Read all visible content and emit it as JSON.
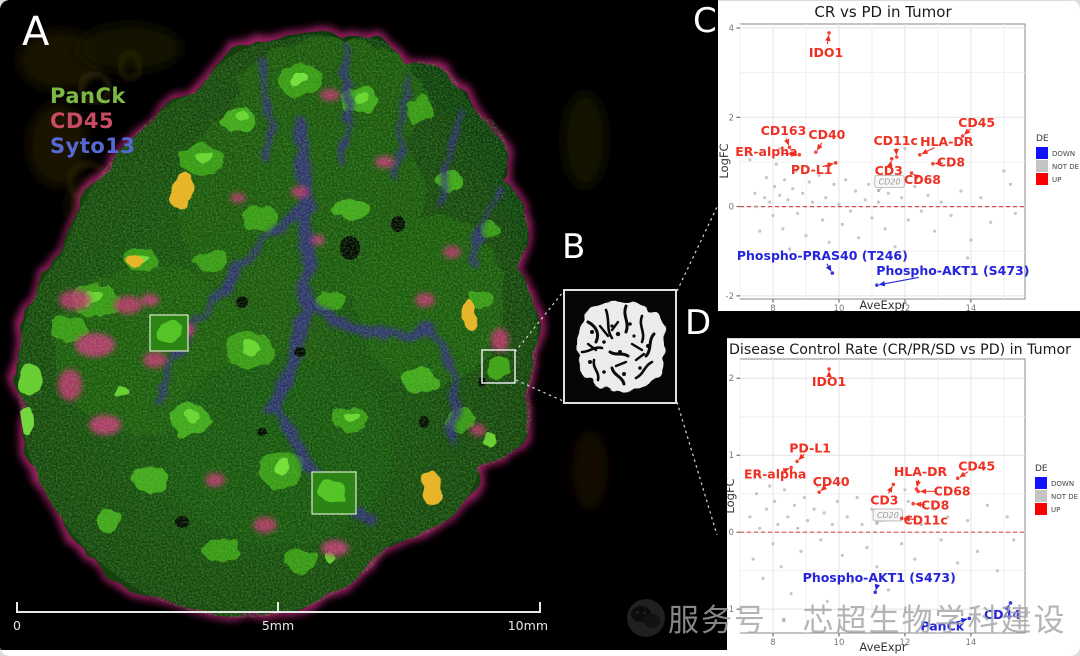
{
  "panel_a": {
    "letter": "A",
    "markers": [
      {
        "name": "PanCk",
        "color": "#7cb944"
      },
      {
        "name": "CD45",
        "color": "#c84a63"
      },
      {
        "name": "Syto13",
        "color": "#5668d2"
      }
    ],
    "scalebar": {
      "start": "0",
      "mid": "5mm",
      "end": "10mm"
    }
  },
  "panel_b": {
    "letter": "B"
  },
  "panel_c": {
    "letter": "C"
  },
  "panel_d": {
    "letter": "D"
  },
  "watermark": {
    "icon": "wechat-icon",
    "text": "服务号 · 芯超生物学科建设"
  },
  "de_colors": {
    "UP": "#ef3023",
    "DOWN": "#2424dd",
    "NOT_DE": "#9e9e9e"
  },
  "legend_swatch_colors": {
    "UP": "#fb0000",
    "DOWN": "#1111ff",
    "NOT_DE": "#c4c4c4"
  },
  "chart_data": [
    {
      "id": "cr_vs_pd",
      "type": "scatter",
      "title": "CR vs PD in Tumor",
      "title_align": "center",
      "xlabel": "AveExpr",
      "ylabel": "LogFC",
      "xlim": [
        7.0,
        15.64
      ],
      "ylim": [
        -2.07,
        4.09
      ],
      "xticks": [
        8,
        10,
        12,
        14
      ],
      "yticks": [
        -2,
        0,
        2,
        4
      ],
      "hline_y": 0,
      "grid": true,
      "legend": {
        "title": "DE",
        "entries": [
          {
            "label": "DOWN",
            "key": "DOWN"
          },
          {
            "label": "NOT DE",
            "key": "NOT_DE"
          },
          {
            "label": "UP",
            "key": "UP"
          }
        ]
      },
      "labeled_points": [
        {
          "name": "IDO1",
          "x": 9.7,
          "y": 3.89,
          "de": "UP",
          "lx": -3,
          "ly": 20
        },
        {
          "name": "CD163",
          "x": 8.5,
          "y": 1.33,
          "de": "UP",
          "lx": -6,
          "ly": -16
        },
        {
          "name": "CD40",
          "x": 9.3,
          "y": 1.22,
          "de": "UP",
          "lx": 11,
          "ly": -17
        },
        {
          "name": "ER-alpha",
          "x": 8.8,
          "y": 1.16,
          "de": "UP",
          "lx": -33,
          "ly": -3
        },
        {
          "name": "PD-L1",
          "x": 9.9,
          "y": 0.98,
          "de": "UP",
          "lx": -24,
          "ly": 7
        },
        {
          "name": "CD11c",
          "x": 11.75,
          "y": 1.11,
          "de": "UP",
          "lx": -1,
          "ly": -16
        },
        {
          "name": "HLA-DR",
          "x": 12.45,
          "y": 1.16,
          "de": "UP",
          "lx": 27,
          "ly": -13
        },
        {
          "name": "CD45",
          "x": 13.75,
          "y": 1.58,
          "de": "UP",
          "lx": 14,
          "ly": -13
        },
        {
          "name": "CD3",
          "x": 11.6,
          "y": 1.07,
          "de": "UP",
          "lx": -3,
          "ly": 12
        },
        {
          "name": "CD8",
          "x": 12.85,
          "y": 0.96,
          "de": "UP",
          "lx": 18,
          "ly": -1
        },
        {
          "name": "CD68",
          "x": 12.2,
          "y": 0.75,
          "de": "UP",
          "lx": 11,
          "ly": 7
        },
        {
          "name": "CD20",
          "x": 11.2,
          "y": 0.36,
          "de": "NOT_DE",
          "lx": 11,
          "ly": -9,
          "boxed": true
        },
        {
          "name": "Phospho-PRAS40 (T246)",
          "x": 9.8,
          "y": -1.49,
          "de": "DOWN",
          "lx": -10,
          "ly": -17
        },
        {
          "name": "Phospho-AKT1 (S473)",
          "x": 11.15,
          "y": -1.76,
          "de": "DOWN",
          "lx": 76,
          "ly": -14
        }
      ],
      "background_points": [
        [
          7.3,
          1.05
        ],
        [
          7.45,
          0.3
        ],
        [
          7.5,
          0.0
        ],
        [
          7.6,
          -0.55
        ],
        [
          7.75,
          0.2
        ],
        [
          7.8,
          0.65
        ],
        [
          7.9,
          0.1
        ],
        [
          8.0,
          -0.2
        ],
        [
          8.05,
          0.45
        ],
        [
          8.1,
          0.95
        ],
        [
          8.2,
          0.25
        ],
        [
          8.2,
          1.3
        ],
        [
          8.3,
          -0.5
        ],
        [
          8.35,
          0.6
        ],
        [
          8.45,
          0.15
        ],
        [
          8.5,
          -0.95
        ],
        [
          8.6,
          0.4
        ],
        [
          8.7,
          0.8
        ],
        [
          8.75,
          -0.15
        ],
        [
          8.9,
          0.3
        ],
        [
          9.0,
          -0.65
        ],
        [
          9.1,
          0.55
        ],
        [
          9.2,
          0.1
        ],
        [
          9.3,
          -1.1
        ],
        [
          9.4,
          0.7
        ],
        [
          9.5,
          -0.3
        ],
        [
          9.6,
          0.2
        ],
        [
          9.7,
          -0.8
        ],
        [
          9.85,
          0.5
        ],
        [
          10.0,
          0.05
        ],
        [
          10.1,
          -0.4
        ],
        [
          10.2,
          0.6
        ],
        [
          10.35,
          -0.1
        ],
        [
          10.5,
          0.35
        ],
        [
          10.6,
          -0.7
        ],
        [
          10.8,
          0.15
        ],
        [
          10.9,
          0.5
        ],
        [
          11.0,
          -0.25
        ],
        [
          11.2,
          0.1
        ],
        [
          11.4,
          -0.5
        ],
        [
          11.5,
          0.3
        ],
        [
          11.7,
          -0.9
        ],
        [
          11.9,
          0.2
        ],
        [
          12.0,
          1.3
        ],
        [
          12.1,
          -0.3
        ],
        [
          12.3,
          0.45
        ],
        [
          12.5,
          -0.1
        ],
        [
          12.7,
          0.25
        ],
        [
          12.9,
          -0.55
        ],
        [
          13.1,
          0.1
        ],
        [
          13.4,
          -0.2
        ],
        [
          13.7,
          0.35
        ],
        [
          13.9,
          -1.15
        ],
        [
          14.0,
          -0.75
        ],
        [
          14.3,
          0.2
        ],
        [
          14.6,
          -0.35
        ],
        [
          15.0,
          0.8
        ],
        [
          15.2,
          0.5
        ],
        [
          15.35,
          -0.15
        ]
      ]
    },
    {
      "id": "dcr_vs_pd",
      "type": "scatter",
      "title": "Disease Control Rate (CR/PR/SD vs PD) in Tumor",
      "title_align": "left",
      "xlabel": "AveExpr",
      "ylabel": "LogFC",
      "xlim": [
        7.0,
        15.64
      ],
      "ylim": [
        -1.31,
        2.25
      ],
      "xticks": [
        8,
        10,
        12,
        14
      ],
      "yticks": [
        -1,
        0,
        1,
        2
      ],
      "hline_y": 0,
      "grid": true,
      "legend": {
        "title": "DE",
        "entries": [
          {
            "label": "DOWN",
            "key": "DOWN"
          },
          {
            "label": "NOT DE",
            "key": "NOT_DE"
          },
          {
            "label": "UP",
            "key": "UP"
          }
        ]
      },
      "labeled_points": [
        {
          "name": "IDO1",
          "x": 9.7,
          "y": 2.12,
          "de": "UP",
          "lx": 0,
          "ly": 13
        },
        {
          "name": "PD-L1",
          "x": 8.73,
          "y": 0.92,
          "de": "UP",
          "lx": 13,
          "ly": -13
        },
        {
          "name": "ER-alpha",
          "x": 8.55,
          "y": 0.84,
          "de": "UP",
          "lx": -16,
          "ly": 7
        },
        {
          "name": "CD40",
          "x": 9.4,
          "y": 0.52,
          "de": "UP",
          "lx": 12,
          "ly": -10
        },
        {
          "name": "HLA-DR",
          "x": 12.35,
          "y": 0.56,
          "de": "UP",
          "lx": 4,
          "ly": -17
        },
        {
          "name": "CD45",
          "x": 13.6,
          "y": 0.7,
          "de": "UP",
          "lx": 19,
          "ly": -12
        },
        {
          "name": "CD68",
          "x": 12.4,
          "y": 0.53,
          "de": "UP",
          "lx": 34,
          "ly": 0
        },
        {
          "name": "CD3",
          "x": 11.65,
          "y": 0.62,
          "de": "UP",
          "lx": -9,
          "ly": 16
        },
        {
          "name": "CD8",
          "x": 12.25,
          "y": 0.37,
          "de": "UP",
          "lx": 22,
          "ly": 2
        },
        {
          "name": "CD20",
          "x": 11.15,
          "y": 0.12,
          "de": "NOT_DE",
          "lx": 11,
          "ly": -8,
          "boxed": true
        },
        {
          "name": "CD11c",
          "x": 11.9,
          "y": 0.18,
          "de": "UP",
          "lx": 24,
          "ly": 2
        },
        {
          "name": "Phospho-AKT1 (S473)",
          "x": 11.1,
          "y": -0.78,
          "de": "DOWN",
          "lx": 4,
          "ly": -14
        },
        {
          "name": "CD44",
          "x": 15.2,
          "y": -0.92,
          "de": "DOWN",
          "lx": -8,
          "ly": 12
        },
        {
          "name": "PanCk",
          "x": 13.95,
          "y": -1.12,
          "de": "DOWN",
          "lx": -27,
          "ly": 8
        }
      ],
      "background_points": [
        [
          7.3,
          0.2
        ],
        [
          7.4,
          -0.35
        ],
        [
          7.5,
          0.5
        ],
        [
          7.6,
          0.05
        ],
        [
          7.6,
          0.75
        ],
        [
          7.7,
          -0.6
        ],
        [
          7.8,
          0.3
        ],
        [
          7.9,
          0.6
        ],
        [
          8.0,
          -0.15
        ],
        [
          8.05,
          0.4
        ],
        [
          8.15,
          0.1
        ],
        [
          8.25,
          -0.45
        ],
        [
          8.35,
          0.55
        ],
        [
          8.45,
          0.2
        ],
        [
          8.55,
          -0.8
        ],
        [
          8.65,
          0.35
        ],
        [
          8.75,
          0.05
        ],
        [
          8.85,
          -0.25
        ],
        [
          8.95,
          0.45
        ],
        [
          9.05,
          0.15
        ],
        [
          9.15,
          -0.55
        ],
        [
          9.25,
          0.3
        ],
        [
          9.35,
          0.6
        ],
        [
          9.45,
          -0.1
        ],
        [
          9.55,
          0.25
        ],
        [
          9.65,
          -0.9
        ],
        [
          9.8,
          0.1
        ],
        [
          9.95,
          0.4
        ],
        [
          10.0,
          0.65
        ],
        [
          10.1,
          -0.3
        ],
        [
          10.25,
          0.2
        ],
        [
          10.4,
          -0.65
        ],
        [
          10.55,
          0.45
        ],
        [
          10.7,
          0.1
        ],
        [
          10.85,
          -0.2
        ],
        [
          11.0,
          0.3
        ],
        [
          11.15,
          -0.45
        ],
        [
          11.3,
          0.15
        ],
        [
          11.5,
          -0.75
        ],
        [
          11.7,
          0.25
        ],
        [
          11.9,
          -0.15
        ],
        [
          12.0,
          0.55
        ],
        [
          12.1,
          0.4
        ],
        [
          12.3,
          -0.35
        ],
        [
          12.5,
          0.1
        ],
        [
          12.7,
          -0.6
        ],
        [
          12.9,
          0.3
        ],
        [
          13.1,
          -0.1
        ],
        [
          13.3,
          0.2
        ],
        [
          13.6,
          -0.4
        ],
        [
          13.9,
          0.15
        ],
        [
          14.2,
          -0.25
        ],
        [
          14.5,
          0.35
        ],
        [
          14.8,
          -0.5
        ],
        [
          15.1,
          0.2
        ],
        [
          15.3,
          -0.1
        ]
      ]
    }
  ]
}
